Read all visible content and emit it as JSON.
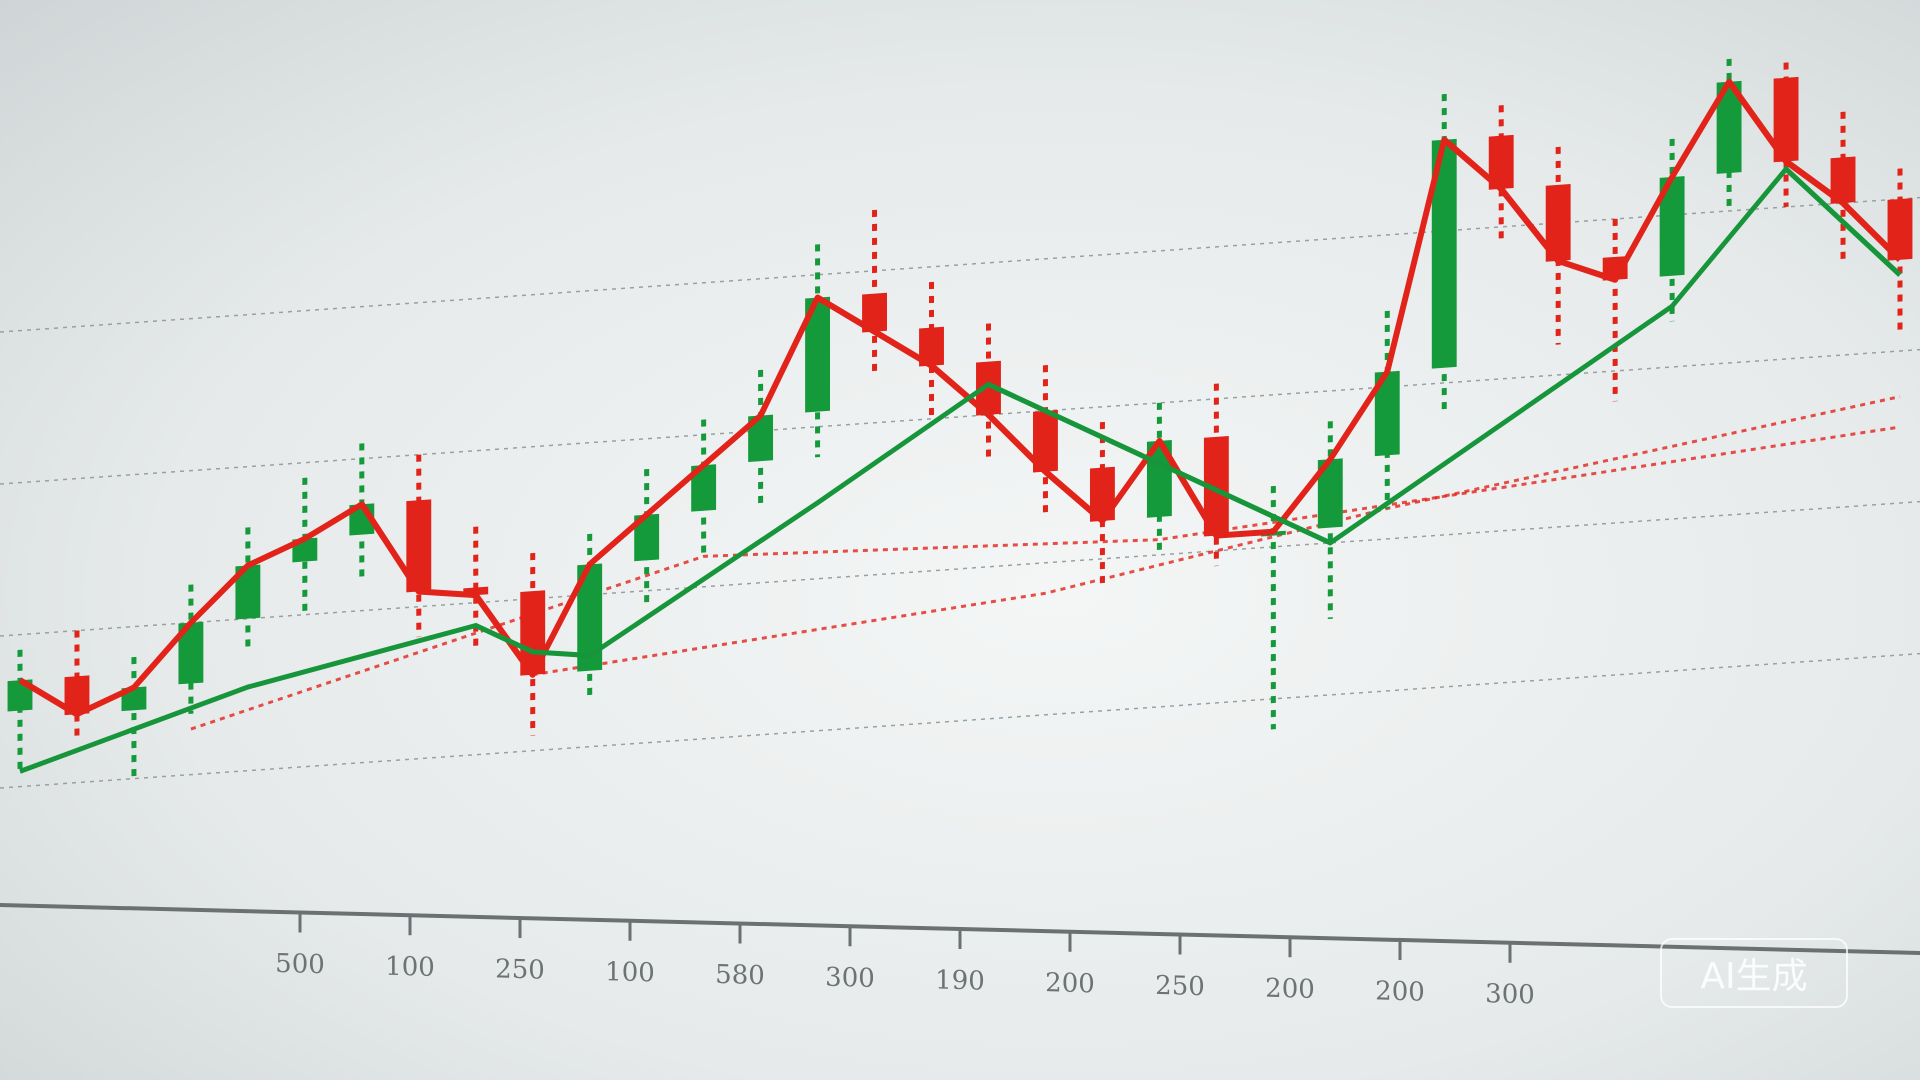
{
  "watermark": "AI生成",
  "colors": {
    "up": "#149a3a",
    "down": "#e2231a",
    "ma": "#17953a",
    "grid": "#9aa0a1",
    "axis": "#6b7072"
  },
  "chart_data": {
    "type": "candlestick",
    "title": "",
    "xlabel": "",
    "ylabel": "",
    "ylim": [
      0,
      100
    ],
    "grid": true,
    "x_tick_labels": [
      "500",
      "100",
      "250",
      "100",
      "580",
      "300",
      "190",
      "200",
      "250",
      "200",
      "200",
      "300"
    ],
    "candles": [
      [
        30,
        38,
        22,
        34
      ],
      [
        34,
        40,
        26,
        29
      ],
      [
        29,
        36,
        20,
        32
      ],
      [
        32,
        45,
        28,
        40
      ],
      [
        40,
        52,
        36,
        47
      ],
      [
        47,
        58,
        40,
        50
      ],
      [
        50,
        62,
        44,
        54
      ],
      [
        54,
        60,
        36,
        42
      ],
      [
        42,
        50,
        34,
        41
      ],
      [
        41,
        46,
        22,
        30
      ],
      [
        30,
        48,
        26,
        44
      ],
      [
        44,
        56,
        38,
        50
      ],
      [
        50,
        62,
        44,
        56
      ],
      [
        56,
        68,
        50,
        62
      ],
      [
        62,
        84,
        56,
        77
      ],
      [
        77,
        88,
        66,
        72
      ],
      [
        72,
        78,
        60,
        67
      ],
      [
        67,
        72,
        54,
        60
      ],
      [
        60,
        66,
        46,
        52
      ],
      [
        52,
        58,
        36,
        45
      ],
      [
        45,
        60,
        40,
        55
      ],
      [
        55,
        62,
        38,
        42
      ],
      [
        42,
        48,
        16,
        42
      ],
      [
        42,
        56,
        30,
        51
      ],
      [
        51,
        70,
        44,
        62
      ],
      [
        62,
        98,
        56,
        92
      ],
      [
        92,
        96,
        78,
        85
      ],
      [
        85,
        90,
        64,
        75
      ],
      [
        75,
        80,
        56,
        72
      ],
      [
        72,
        90,
        66,
        85
      ],
      [
        85,
        100,
        80,
        97
      ],
      [
        97,
        99,
        80,
        86
      ],
      [
        86,
        92,
        72,
        80
      ],
      [
        80,
        84,
        62,
        72
      ]
    ],
    "moving_average": [
      [
        0,
        22
      ],
      [
        4,
        31
      ],
      [
        8,
        37
      ],
      [
        9,
        33
      ],
      [
        10,
        32
      ],
      [
        14,
        50
      ],
      [
        17,
        64
      ],
      [
        21,
        48
      ],
      [
        23,
        40
      ],
      [
        29,
        68
      ],
      [
        31,
        85
      ],
      [
        33,
        70
      ]
    ],
    "trend_lines": [
      [
        [
          3,
          26
        ],
        [
          12,
          44
        ],
        [
          20,
          42
        ],
        [
          33,
          50
        ]
      ],
      [
        [
          9,
          30
        ],
        [
          18,
          36
        ],
        [
          24,
          44
        ],
        [
          33,
          54
        ]
      ]
    ]
  }
}
